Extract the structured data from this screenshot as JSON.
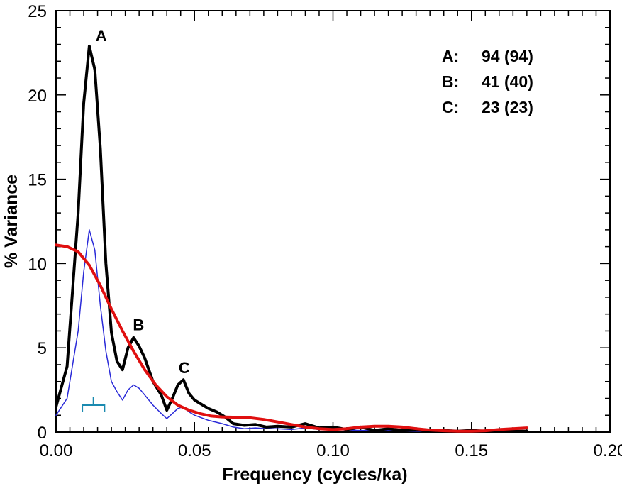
{
  "chart_data": {
    "type": "line",
    "xlabel": "Frequency (cycles/ka)",
    "ylabel": "% Variance",
    "xlim": [
      0.0,
      0.2
    ],
    "ylim": [
      0,
      25
    ],
    "x_ticks": [
      "0.00",
      "0.05",
      "0.10",
      "0.15",
      "0.20"
    ],
    "y_ticks": [
      "0",
      "5",
      "10",
      "15",
      "20",
      "25"
    ],
    "grid": false,
    "series": [
      {
        "color": "#000000",
        "points": [
          [
            0.0,
            1.5
          ],
          [
            0.004,
            3.9
          ],
          [
            0.008,
            13.0
          ],
          [
            0.01,
            19.5
          ],
          [
            0.012,
            22.9
          ],
          [
            0.014,
            21.5
          ],
          [
            0.016,
            16.8
          ],
          [
            0.018,
            10.0
          ],
          [
            0.02,
            5.9
          ],
          [
            0.022,
            4.2
          ],
          [
            0.024,
            3.7
          ],
          [
            0.026,
            5.0
          ],
          [
            0.028,
            5.6
          ],
          [
            0.03,
            5.1
          ],
          [
            0.032,
            4.4
          ],
          [
            0.035,
            3.0
          ],
          [
            0.038,
            2.2
          ],
          [
            0.04,
            1.3
          ],
          [
            0.042,
            2.0
          ],
          [
            0.044,
            2.8
          ],
          [
            0.046,
            3.1
          ],
          [
            0.048,
            2.3
          ],
          [
            0.05,
            1.9
          ],
          [
            0.052,
            1.7
          ],
          [
            0.055,
            1.4
          ],
          [
            0.058,
            1.2
          ],
          [
            0.061,
            0.9
          ],
          [
            0.064,
            0.5
          ],
          [
            0.068,
            0.4
          ],
          [
            0.072,
            0.45
          ],
          [
            0.076,
            0.3
          ],
          [
            0.08,
            0.35
          ],
          [
            0.085,
            0.3
          ],
          [
            0.09,
            0.5
          ],
          [
            0.095,
            0.25
          ],
          [
            0.1,
            0.3
          ],
          [
            0.105,
            0.15
          ],
          [
            0.11,
            0.3
          ],
          [
            0.115,
            0.1
          ],
          [
            0.12,
            0.2
          ],
          [
            0.125,
            0.1
          ],
          [
            0.13,
            0.15
          ],
          [
            0.135,
            0.05
          ],
          [
            0.14,
            0.1
          ],
          [
            0.145,
            0.05
          ],
          [
            0.15,
            0.1
          ],
          [
            0.155,
            0.05
          ],
          [
            0.16,
            0.1
          ],
          [
            0.165,
            0.05
          ],
          [
            0.17,
            0.05
          ]
        ]
      },
      {
        "color": "#2a2ad8",
        "points": [
          [
            0.0,
            1.0
          ],
          [
            0.004,
            2.0
          ],
          [
            0.008,
            6.0
          ],
          [
            0.01,
            9.5
          ],
          [
            0.012,
            12.0
          ],
          [
            0.014,
            10.8
          ],
          [
            0.016,
            7.5
          ],
          [
            0.018,
            4.8
          ],
          [
            0.02,
            3.0
          ],
          [
            0.022,
            2.4
          ],
          [
            0.024,
            1.9
          ],
          [
            0.026,
            2.5
          ],
          [
            0.028,
            2.8
          ],
          [
            0.03,
            2.6
          ],
          [
            0.032,
            2.2
          ],
          [
            0.035,
            1.6
          ],
          [
            0.038,
            1.1
          ],
          [
            0.04,
            0.8
          ],
          [
            0.042,
            1.1
          ],
          [
            0.044,
            1.4
          ],
          [
            0.046,
            1.5
          ],
          [
            0.048,
            1.2
          ],
          [
            0.05,
            1.0
          ],
          [
            0.055,
            0.7
          ],
          [
            0.06,
            0.5
          ],
          [
            0.064,
            0.3
          ],
          [
            0.068,
            0.2
          ],
          [
            0.072,
            0.25
          ],
          [
            0.076,
            0.2
          ],
          [
            0.08,
            0.2
          ],
          [
            0.085,
            0.15
          ],
          [
            0.09,
            0.25
          ],
          [
            0.095,
            0.15
          ],
          [
            0.1,
            0.15
          ],
          [
            0.11,
            0.1
          ],
          [
            0.12,
            0.1
          ],
          [
            0.13,
            0.05
          ],
          [
            0.14,
            0.05
          ],
          [
            0.15,
            0.05
          ],
          [
            0.16,
            0.05
          ],
          [
            0.17,
            0.05
          ]
        ]
      },
      {
        "color": "#e01010",
        "points": [
          [
            0.0,
            11.1
          ],
          [
            0.004,
            11.0
          ],
          [
            0.008,
            10.7
          ],
          [
            0.012,
            9.9
          ],
          [
            0.016,
            8.7
          ],
          [
            0.02,
            7.3
          ],
          [
            0.024,
            6.0
          ],
          [
            0.028,
            4.8
          ],
          [
            0.032,
            3.7
          ],
          [
            0.036,
            2.8
          ],
          [
            0.04,
            2.1
          ],
          [
            0.044,
            1.6
          ],
          [
            0.048,
            1.3
          ],
          [
            0.052,
            1.1
          ],
          [
            0.056,
            0.95
          ],
          [
            0.06,
            0.9
          ],
          [
            0.065,
            0.88
          ],
          [
            0.07,
            0.85
          ],
          [
            0.075,
            0.75
          ],
          [
            0.08,
            0.6
          ],
          [
            0.085,
            0.45
          ],
          [
            0.09,
            0.3
          ],
          [
            0.095,
            0.2
          ],
          [
            0.1,
            0.15
          ],
          [
            0.105,
            0.2
          ],
          [
            0.11,
            0.3
          ],
          [
            0.115,
            0.35
          ],
          [
            0.12,
            0.35
          ],
          [
            0.125,
            0.3
          ],
          [
            0.13,
            0.2
          ],
          [
            0.135,
            0.12
          ],
          [
            0.14,
            0.08
          ],
          [
            0.145,
            0.05
          ],
          [
            0.15,
            0.05
          ],
          [
            0.155,
            0.08
          ],
          [
            0.16,
            0.15
          ],
          [
            0.165,
            0.2
          ],
          [
            0.17,
            0.25
          ]
        ]
      }
    ],
    "peak_labels": [
      {
        "text": "A",
        "x": 0.0135,
        "y": 22.9
      },
      {
        "text": "B",
        "x": 0.027,
        "y": 5.75
      },
      {
        "text": "C",
        "x": 0.0435,
        "y": 3.2
      }
    ],
    "annotations": [
      {
        "key": "A:",
        "value": "94 (94)"
      },
      {
        "key": "B:",
        "value": "41 (40)"
      },
      {
        "key": "C:",
        "value": "23 (23)"
      }
    ],
    "bandwidth_marker": {
      "x_start": 0.0095,
      "x_end": 0.0175,
      "y": 1.6,
      "color": "#1a8ab0"
    }
  }
}
